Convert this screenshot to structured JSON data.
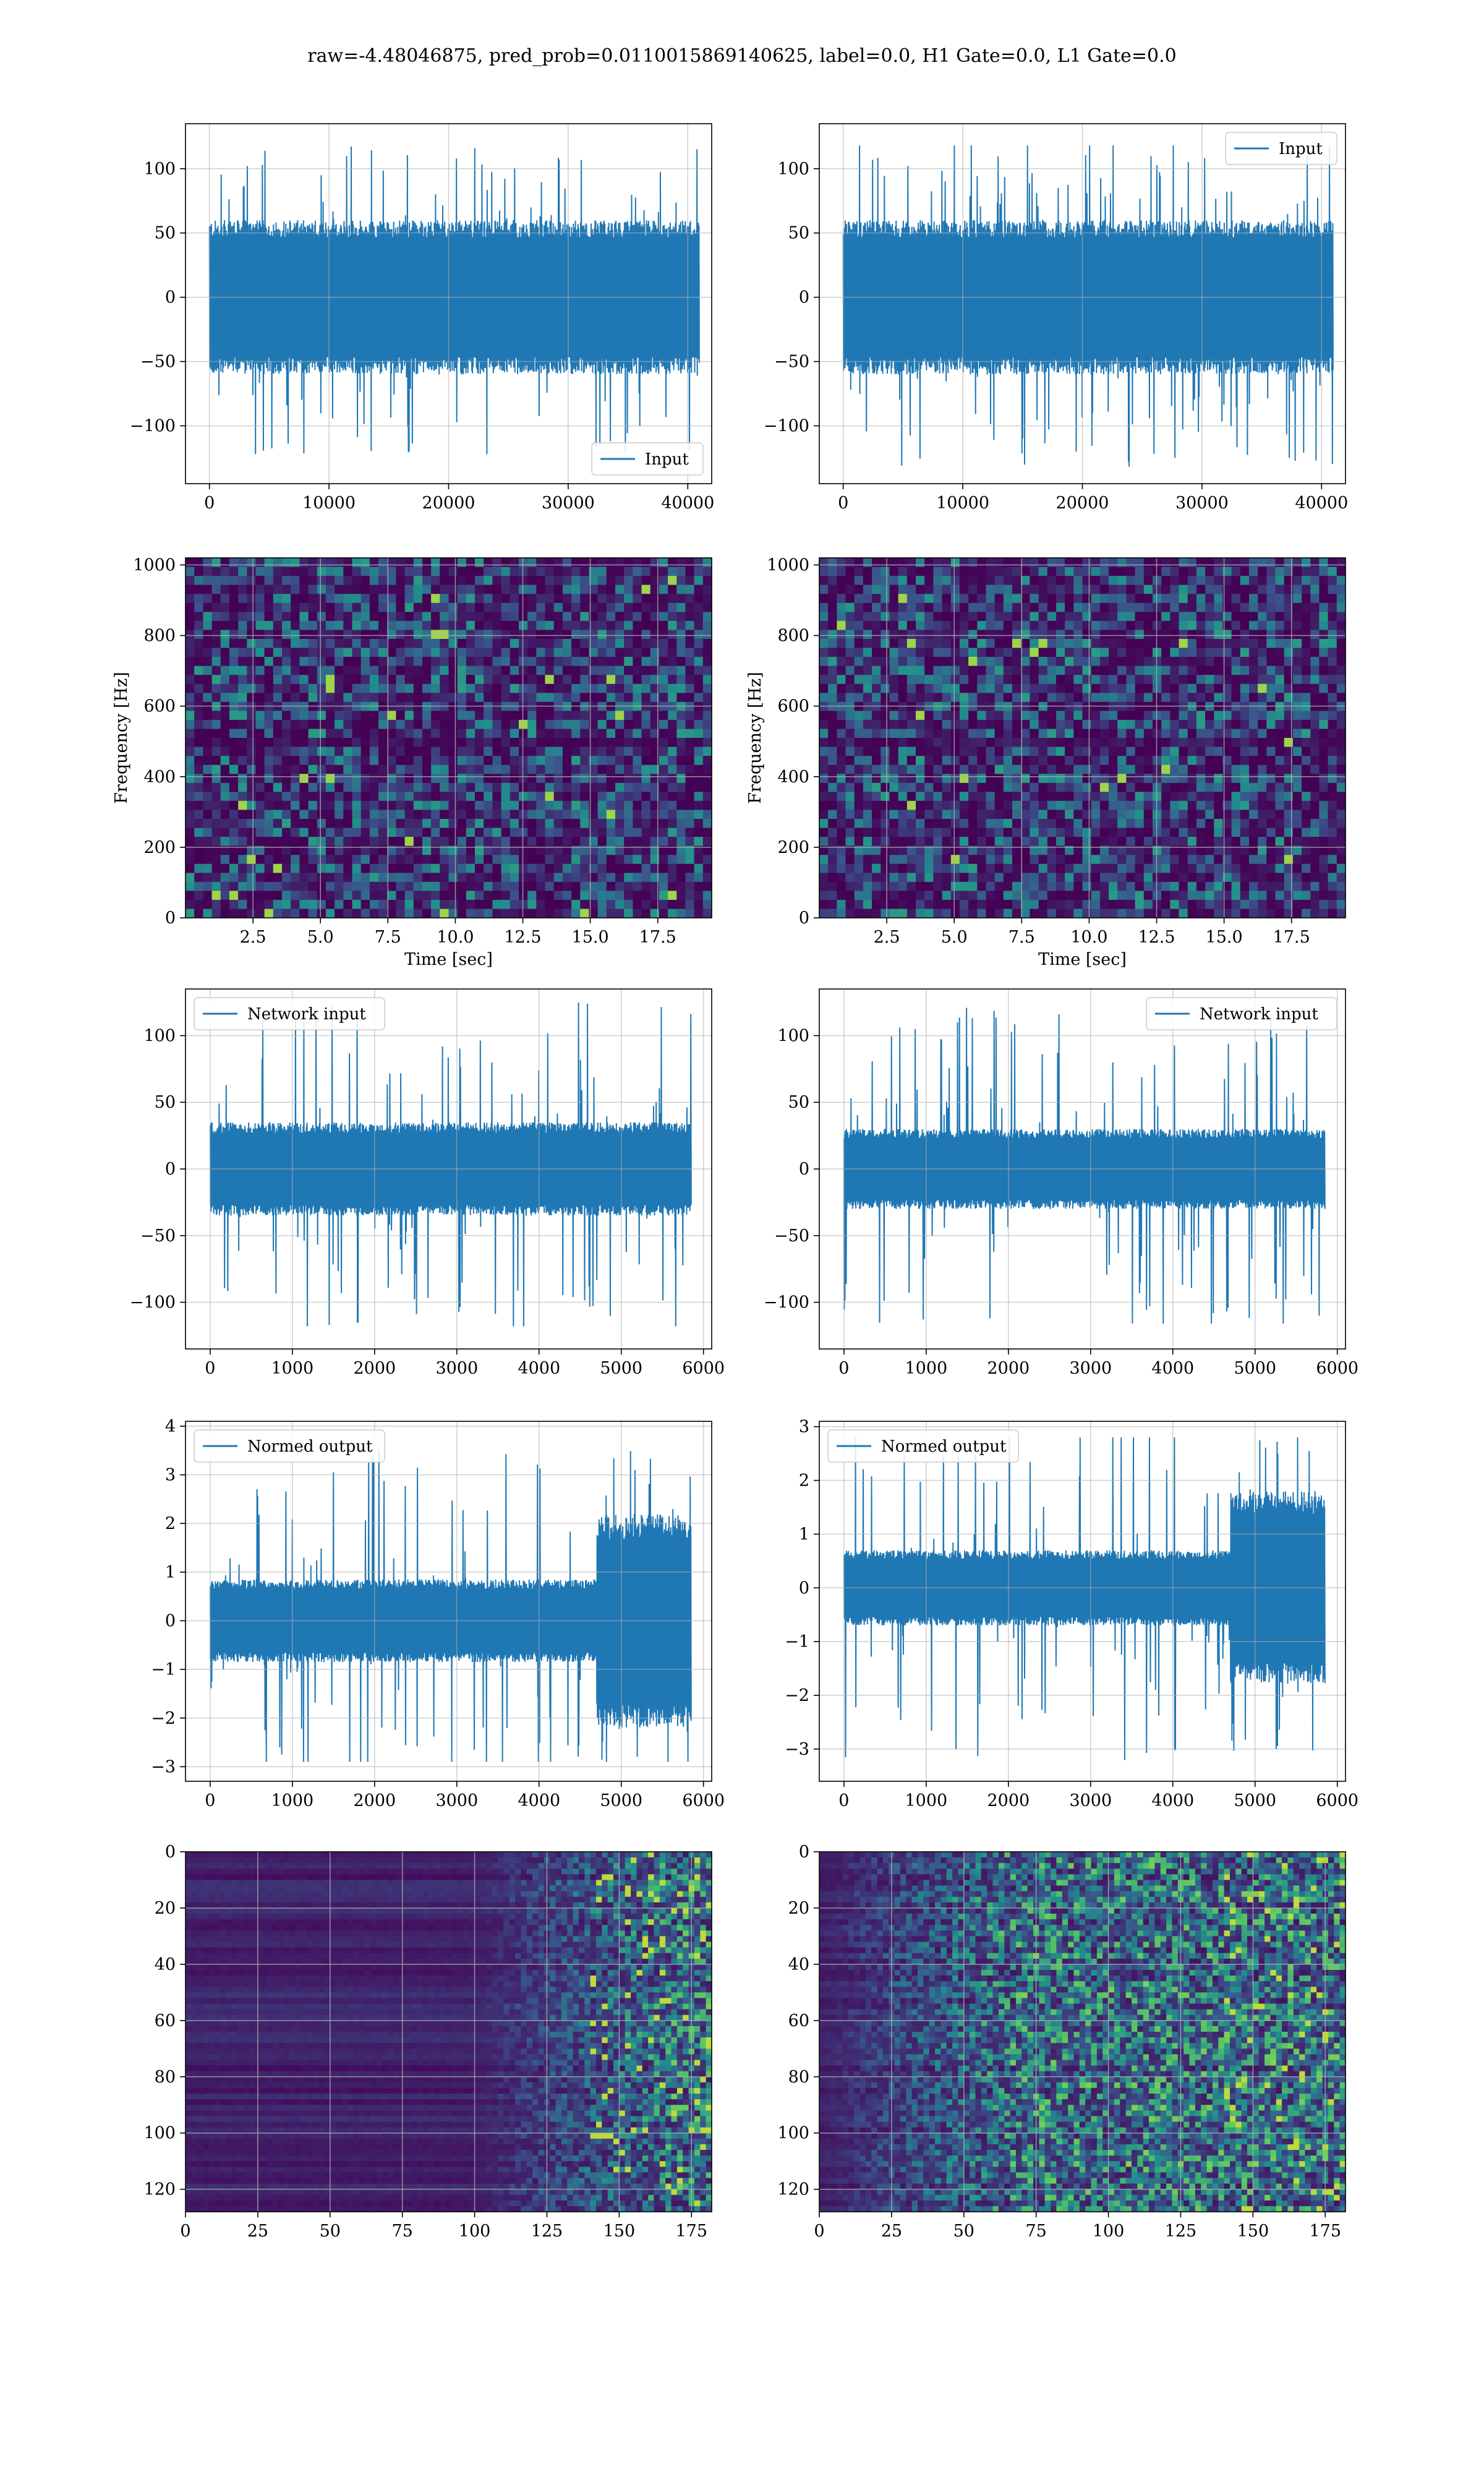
{
  "figure": {
    "title": "raw=-4.48046875, pred_prob=0.0110015869140625, label=0.0, H1 Gate=0.0, L1 Gate=0.0"
  },
  "colors": {
    "line": "#1f77b4",
    "grid": "#b0b0b0",
    "viridis_low": "#440154",
    "viridis_mid": "#21918c",
    "viridis_high": "#fde725"
  },
  "chart_data": [
    {
      "id": "input-left",
      "type": "line",
      "row": 0,
      "col": 0,
      "series": [
        {
          "name": "Input"
        }
      ],
      "legend": "lower-right",
      "xlim": [
        -2000,
        42000
      ],
      "ylim": [
        -145,
        135
      ],
      "xticks": [
        0,
        10000,
        20000,
        30000,
        40000
      ],
      "yticks": [
        -100,
        -50,
        0,
        50,
        100
      ],
      "x_range": [
        0,
        40960
      ],
      "envelope": {
        "core": 60,
        "min": -122,
        "max": 124
      },
      "grid": true
    },
    {
      "id": "input-right",
      "type": "line",
      "row": 0,
      "col": 1,
      "series": [
        {
          "name": "Input"
        }
      ],
      "legend": "upper-right",
      "xlim": [
        -2000,
        42000
      ],
      "ylim": [
        -145,
        135
      ],
      "xticks": [
        0,
        10000,
        20000,
        30000,
        40000
      ],
      "yticks": [
        -100,
        -50,
        0,
        50,
        100
      ],
      "x_range": [
        0,
        40960
      ],
      "envelope": {
        "core": 60,
        "min": -132,
        "max": 118
      },
      "grid": true
    },
    {
      "id": "spectrogram-left",
      "type": "heatmap",
      "row": 1,
      "col": 0,
      "xlabel": "Time [sec]",
      "ylabel": "Frequency [Hz]",
      "xlim": [
        0,
        19.5
      ],
      "ylim": [
        0,
        1020
      ],
      "xticks": [
        2.5,
        5.0,
        7.5,
        10.0,
        12.5,
        15.0,
        17.5
      ],
      "xtick_labels": [
        "2.5",
        "5.0",
        "7.5",
        "10.0",
        "12.5",
        "15.0",
        "17.5"
      ],
      "yticks": [
        0,
        200,
        400,
        600,
        800,
        1000
      ],
      "colormap": "viridis",
      "dark_band_hz": [
        500
      ],
      "grid": true
    },
    {
      "id": "spectrogram-right",
      "type": "heatmap",
      "row": 1,
      "col": 1,
      "xlabel": "Time [sec]",
      "ylabel": "Frequency [Hz]",
      "xlim": [
        0,
        19.5
      ],
      "ylim": [
        0,
        1020
      ],
      "xticks": [
        2.5,
        5.0,
        7.5,
        10.0,
        12.5,
        15.0,
        17.5
      ],
      "xtick_labels": [
        "2.5",
        "5.0",
        "7.5",
        "10.0",
        "12.5",
        "15.0",
        "17.5"
      ],
      "yticks": [
        0,
        200,
        400,
        600,
        800,
        1000
      ],
      "colormap": "viridis",
      "dark_band_hz": [
        500
      ],
      "grid": true
    },
    {
      "id": "network-input-left",
      "type": "line",
      "row": 2,
      "col": 0,
      "series": [
        {
          "name": "Network input"
        }
      ],
      "legend": "upper-left",
      "xlim": [
        -300,
        6100
      ],
      "ylim": [
        -135,
        135
      ],
      "xticks": [
        0,
        1000,
        2000,
        3000,
        4000,
        5000,
        6000
      ],
      "yticks": [
        -100,
        -50,
        0,
        50,
        100
      ],
      "x_range": [
        0,
        5850
      ],
      "envelope": {
        "core": 35,
        "min": -118,
        "max": 125
      },
      "grid": true
    },
    {
      "id": "network-input-right",
      "type": "line",
      "row": 2,
      "col": 1,
      "series": [
        {
          "name": "Network input"
        }
      ],
      "legend": "upper-right",
      "xlim": [
        -300,
        6100
      ],
      "ylim": [
        -135,
        135
      ],
      "xticks": [
        0,
        1000,
        2000,
        3000,
        4000,
        5000,
        6000
      ],
      "yticks": [
        -100,
        -50,
        0,
        50,
        100
      ],
      "x_range": [
        0,
        5850
      ],
      "envelope": {
        "core": 30,
        "min": -116,
        "max": 122
      },
      "grid": true
    },
    {
      "id": "normed-output-left",
      "type": "line",
      "row": 3,
      "col": 0,
      "series": [
        {
          "name": "Normed output"
        }
      ],
      "legend": "upper-left",
      "xlim": [
        -300,
        6100
      ],
      "ylim": [
        -3.3,
        4.1
      ],
      "xticks": [
        0,
        1000,
        2000,
        3000,
        4000,
        5000,
        6000
      ],
      "yticks": [
        -3,
        -2,
        -1,
        0,
        1,
        2,
        3,
        4
      ],
      "x_range": [
        0,
        5850
      ],
      "envelope": {
        "core": 0.85,
        "late_core": 2.2,
        "late_start": 4700,
        "min": -2.9,
        "max": 3.7
      },
      "grid": true
    },
    {
      "id": "normed-output-right",
      "type": "line",
      "row": 3,
      "col": 1,
      "series": [
        {
          "name": "Normed output"
        }
      ],
      "legend": "upper-left",
      "xlim": [
        -300,
        6100
      ],
      "ylim": [
        -3.6,
        3.1
      ],
      "xticks": [
        0,
        1000,
        2000,
        3000,
        4000,
        5000,
        6000
      ],
      "yticks": [
        -3,
        -2,
        -1,
        0,
        1,
        2,
        3
      ],
      "x_range": [
        0,
        5850
      ],
      "envelope": {
        "core": 0.7,
        "late_core": 1.8,
        "late_start": 4700,
        "min": -3.3,
        "max": 2.8
      },
      "grid": true
    },
    {
      "id": "feature-map-left",
      "type": "heatmap",
      "row": 4,
      "col": 0,
      "xlim": [
        0,
        182
      ],
      "ylim": [
        128,
        0
      ],
      "xticks": [
        0,
        25,
        50,
        75,
        100,
        125,
        150,
        175
      ],
      "yticks": [
        0,
        20,
        40,
        60,
        80,
        100,
        120
      ],
      "colormap": "viridis",
      "activity_start_col": 100,
      "grid": true
    },
    {
      "id": "feature-map-right",
      "type": "heatmap",
      "row": 4,
      "col": 1,
      "xlim": [
        0,
        182
      ],
      "ylim": [
        128,
        0
      ],
      "xticks": [
        0,
        25,
        50,
        75,
        100,
        125,
        150,
        175
      ],
      "yticks": [
        0,
        20,
        40,
        60,
        80,
        100,
        120
      ],
      "colormap": "viridis",
      "activity_start_col": 0,
      "grid": true
    }
  ]
}
